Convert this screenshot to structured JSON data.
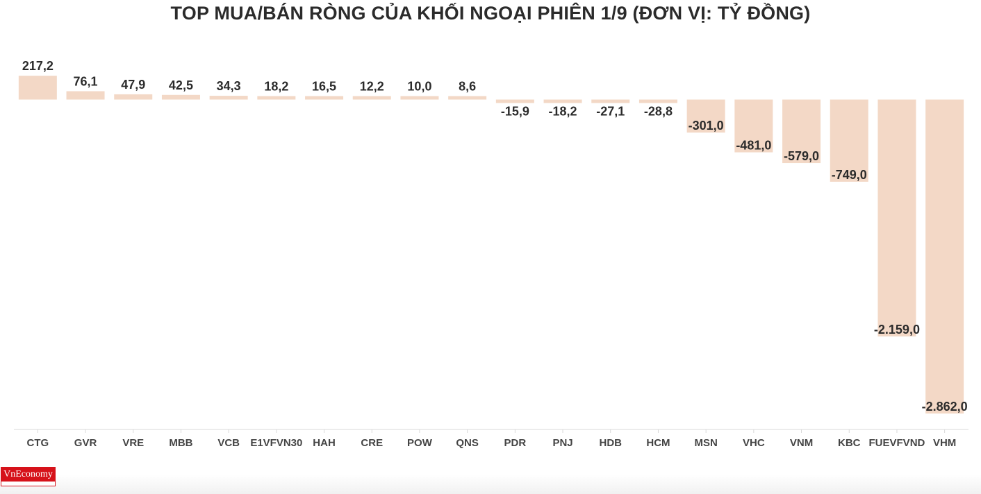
{
  "title": "TOP MUA/BÁN RÒNG CỦA KHỐI NGOẠI PHIÊN 1/9 (ĐƠN VỊ: TỶ ĐỒNG)",
  "brand": "VnEconomy",
  "colors": {
    "bar": "#f3d8c6",
    "text": "#2b2b2b",
    "brand": "#d6121a",
    "axis": "#d9d9d9"
  },
  "chart_data": {
    "type": "bar",
    "title": "TOP MUA/BÁN RÒNG CỦA KHỐI NGOẠI PHIÊN 1/9 (ĐƠN VỊ: TỶ ĐỒNG)",
    "categories": [
      "CTG",
      "GVR",
      "VRE",
      "MBB",
      "VCB",
      "E1VFVN30",
      "HAH",
      "CRE",
      "POW",
      "QNS",
      "PDR",
      "PNJ",
      "HDB",
      "HCM",
      "MSN",
      "VHC",
      "VNM",
      "KBC",
      "FUEVFVND",
      "VHM"
    ],
    "values": [
      217.2,
      76.1,
      47.9,
      42.5,
      34.3,
      18.2,
      16.5,
      12.2,
      10.0,
      8.6,
      -15.9,
      -18.2,
      -27.1,
      -28.8,
      -301.0,
      -481.0,
      -579.0,
      -749.0,
      -2159.0,
      -2862.0
    ],
    "value_labels": [
      "217,2",
      "76,1",
      "47,9",
      "42,5",
      "34,3",
      "18,2",
      "16,5",
      "12,2",
      "10,0",
      "8,6",
      "-15,9",
      "-18,2",
      "-27,1",
      "-28,8",
      "-301,0",
      "-481,0",
      "-579,0",
      "-749,0",
      "-2.159,0",
      "-2.862,0"
    ],
    "xlabel": "",
    "ylabel": "",
    "grid": false,
    "legend": "none"
  }
}
